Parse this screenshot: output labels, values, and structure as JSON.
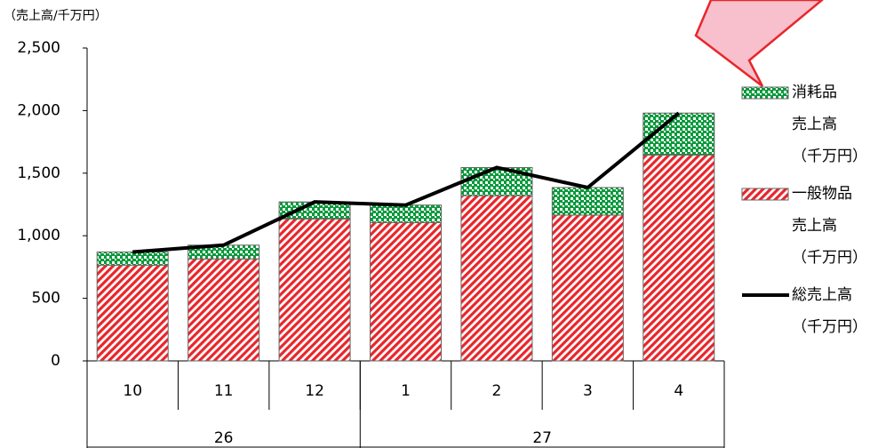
{
  "chart_data": {
    "type": "bar",
    "stacked": true,
    "y_label": "（売上高/千万円）",
    "categories": [
      "10",
      "11",
      "12",
      "1",
      "2",
      "3",
      "4"
    ],
    "category_groups": [
      {
        "label": "26",
        "count": 3
      },
      {
        "label": "27",
        "count": 4
      }
    ],
    "series": [
      {
        "name": "一般物品\n売上高\n（千万円）",
        "type": "bar",
        "color": "#e8262b",
        "values": [
          765,
          815,
          1135,
          1105,
          1320,
          1165,
          1645
        ]
      },
      {
        "name": "消耗品\n売上高\n（千万円）",
        "type": "bar",
        "color": "#0a9a3c",
        "values": [
          105,
          110,
          135,
          140,
          225,
          220,
          335
        ]
      },
      {
        "name": "総売上高\n（千万円）",
        "type": "line",
        "color": "#000000",
        "values": [
          870,
          925,
          1270,
          1245,
          1545,
          1385,
          1980
        ]
      }
    ],
    "ylim": [
      0,
      2500
    ],
    "yticks": [
      0,
      {
        "value": 500,
        "label": "500"
      },
      {
        "value": 1000,
        "label": "1,000"
      },
      {
        "value": 1500,
        "label": "1,500"
      },
      {
        "value": 2000,
        "label": "2,000"
      },
      {
        "value": 2500,
        "label": "2,500"
      }
    ],
    "grid": false
  }
}
